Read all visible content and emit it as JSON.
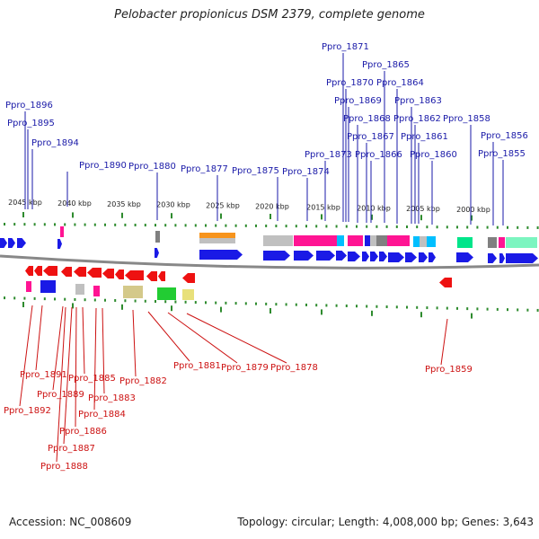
{
  "title": "Pelobacter propionicus DSM 2379, complete genome",
  "accession_label": "Accession: NC_008609",
  "summary_label": "Topology: circular; Length: 4,008,000 bp; Genes: 3,643",
  "colors": {
    "background": "#ffffff",
    "top_label": "#1a1aa8",
    "bottom_label": "#cc1111",
    "tick": "#2e8b2e",
    "backbone": "#888888",
    "forward_gene": "#1a1ae6",
    "reverse_gene": "#ee1111"
  },
  "scale": {
    "ticks": [
      {
        "label": "2045 kbp"
      },
      {
        "label": "2040 kbp"
      },
      {
        "label": "2035 kbp"
      },
      {
        "label": "2030 kbp"
      },
      {
        "label": "2025 kbp"
      },
      {
        "label": "2020 kbp"
      },
      {
        "label": "2015 kbp"
      },
      {
        "label": "2010 kbp"
      },
      {
        "label": "2005 kbp"
      },
      {
        "label": "2000 kbp"
      }
    ]
  },
  "top_genes": [
    "Ppro_1896",
    "Ppro_1895",
    "Ppro_1894",
    "Ppro_1890",
    "Ppro_1880",
    "Ppro_1877",
    "Ppro_1875",
    "Ppro_1874",
    "Ppro_1873",
    "Ppro_1871",
    "Ppro_1870",
    "Ppro_1869",
    "Ppro_1868",
    "Ppro_1867",
    "Ppro_1866",
    "Ppro_1865",
    "Ppro_1864",
    "Ppro_1863",
    "Ppro_1862",
    "Ppro_1861",
    "Ppro_1860",
    "Ppro_1858",
    "Ppro_1856",
    "Ppro_1855"
  ],
  "bottom_genes": [
    "Ppro_1891",
    "Ppro_1892",
    "Ppro_1889",
    "Ppro_1885",
    "Ppro_1883",
    "Ppro_1884",
    "Ppro_1886",
    "Ppro_1887",
    "Ppro_1888",
    "Ppro_1882",
    "Ppro_1881",
    "Ppro_1879",
    "Ppro_1878",
    "Ppro_1859"
  ],
  "feature_colors": [
    "#f7941d",
    "#ff1493",
    "#00bfff",
    "#c0c0c0",
    "#808080",
    "#00e58a",
    "#7cf5c0",
    "#ff1aa8",
    "#d4c98a",
    "#e8e07a",
    "#22cc33",
    "#000080"
  ]
}
